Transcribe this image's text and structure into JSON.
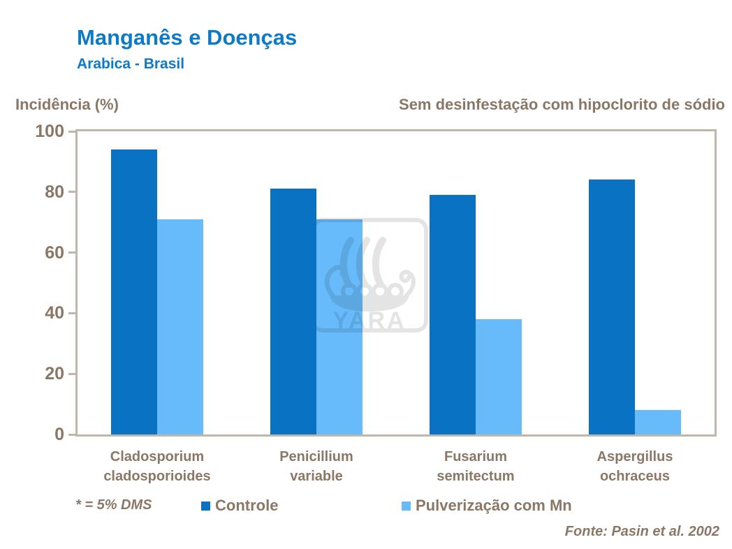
{
  "header": {
    "title": "Manganês e Doenças",
    "subtitle": "Arabica - Brasil",
    "condition_note": "Sem desinfestação com hipoclorito de sódio"
  },
  "chart_data": {
    "type": "bar",
    "title": "Manganês e Doenças",
    "subtitle": "Arabica - Brasil",
    "ylabel": "Incidência (%)",
    "xlabel": "",
    "ylim": [
      0,
      100
    ],
    "yticks": [
      0,
      20,
      40,
      60,
      80,
      100
    ],
    "grid": false,
    "legend_position": "bottom",
    "categories": [
      "Cladosporium cladosporioides",
      "Penicillium variable",
      "Fusarium semitectum",
      "Aspergillus ochraceus"
    ],
    "categories_lines": [
      [
        "Cladosporium",
        "cladosporioides"
      ],
      [
        "Penicillium",
        "variable"
      ],
      [
        "Fusarium",
        "semitectum"
      ],
      [
        "Aspergillus",
        "ochraceus"
      ]
    ],
    "series": [
      {
        "name": "Controle",
        "color": "#0a72c3",
        "values": [
          94,
          81,
          79,
          84
        ]
      },
      {
        "name": "Pulverização com Mn",
        "color": "#68bbfb",
        "values": [
          71,
          71,
          38,
          8
        ]
      }
    ]
  },
  "watermark": {
    "icon": "yara-viking-ship-logo",
    "text": "YARA",
    "color": "#e4e4e4"
  },
  "footer": {
    "note": "* = 5% DMS",
    "source": "Fonte: Pasin et al. 2002"
  },
  "colors": {
    "title_blue": "#0d7ac8",
    "text_taupe": "#8a7766",
    "axis_border": "#c0b7ab",
    "controle_blue": "#0a72c3",
    "mn_light_blue": "#68bbfb",
    "watermark_gray": "#e4e4e4"
  }
}
